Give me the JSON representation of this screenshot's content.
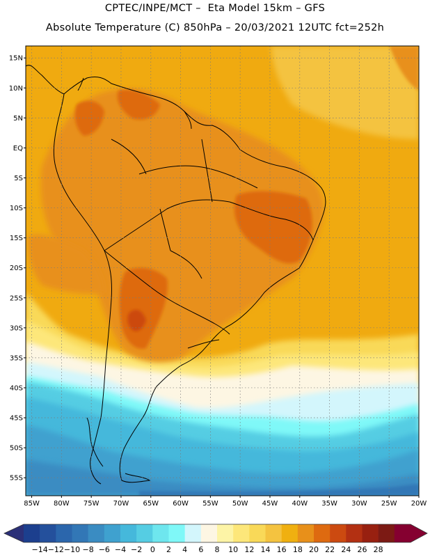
{
  "header": {
    "line1": "CPTEC/INPE/MCT –  Eta Model 15km – GFS",
    "line2": "Absolute Temperature (C) 850hPa – 20/03/2021 12UTC fct=252h"
  },
  "map": {
    "lon_range": [
      -86,
      -20
    ],
    "lat_range": [
      -58,
      17
    ],
    "lat_labels": [
      "15N",
      "10N",
      "5N",
      "EQ",
      "5S",
      "10S",
      "15S",
      "20S",
      "25S",
      "30S",
      "35S",
      "40S",
      "45S",
      "50S",
      "55S"
    ],
    "lat_values": [
      15,
      10,
      5,
      0,
      -5,
      -10,
      -15,
      -20,
      -25,
      -30,
      -35,
      -40,
      -45,
      -50,
      -55
    ],
    "lon_labels": [
      "85W",
      "80W",
      "75W",
      "70W",
      "65W",
      "60W",
      "55W",
      "50W",
      "45W",
      "40W",
      "35W",
      "30W",
      "25W",
      "20W"
    ],
    "lon_values": [
      -85,
      -80,
      -75,
      -70,
      -65,
      -60,
      -55,
      -50,
      -45,
      -40,
      -35,
      -30,
      -25,
      -20
    ]
  },
  "colorbar": {
    "labels": [
      "-14",
      "-12",
      "-10",
      "-8",
      "-6",
      "-4",
      "-2",
      "0",
      "2",
      "4",
      "6",
      "8",
      "10",
      "12",
      "14",
      "16",
      "18",
      "20",
      "22",
      "24",
      "26",
      "28"
    ],
    "colors": [
      "#1c3f8e",
      "#24509c",
      "#2b66ac",
      "#3277b6",
      "#3a8cc2",
      "#3fa1cf",
      "#45b8db",
      "#55cde3",
      "#6ee6ee",
      "#7ff8f8",
      "#d3f6fc",
      "#fdf6e3",
      "#fdf4a6",
      "#fde77a",
      "#f9d958",
      "#f4c340",
      "#f0b010",
      "#e8901a",
      "#de6a10",
      "#cc4a10",
      "#b33012",
      "#982010",
      "#7c1a14",
      "#850030"
    ],
    "low_arrow_color": "#2b3078",
    "high_arrow_color": "#850030"
  },
  "colors": {
    "background_warm": "#f0aa10",
    "continent_hot": "#e8901a",
    "core_hot": "#de6a10",
    "ocean_deep": "#2b66ac"
  }
}
